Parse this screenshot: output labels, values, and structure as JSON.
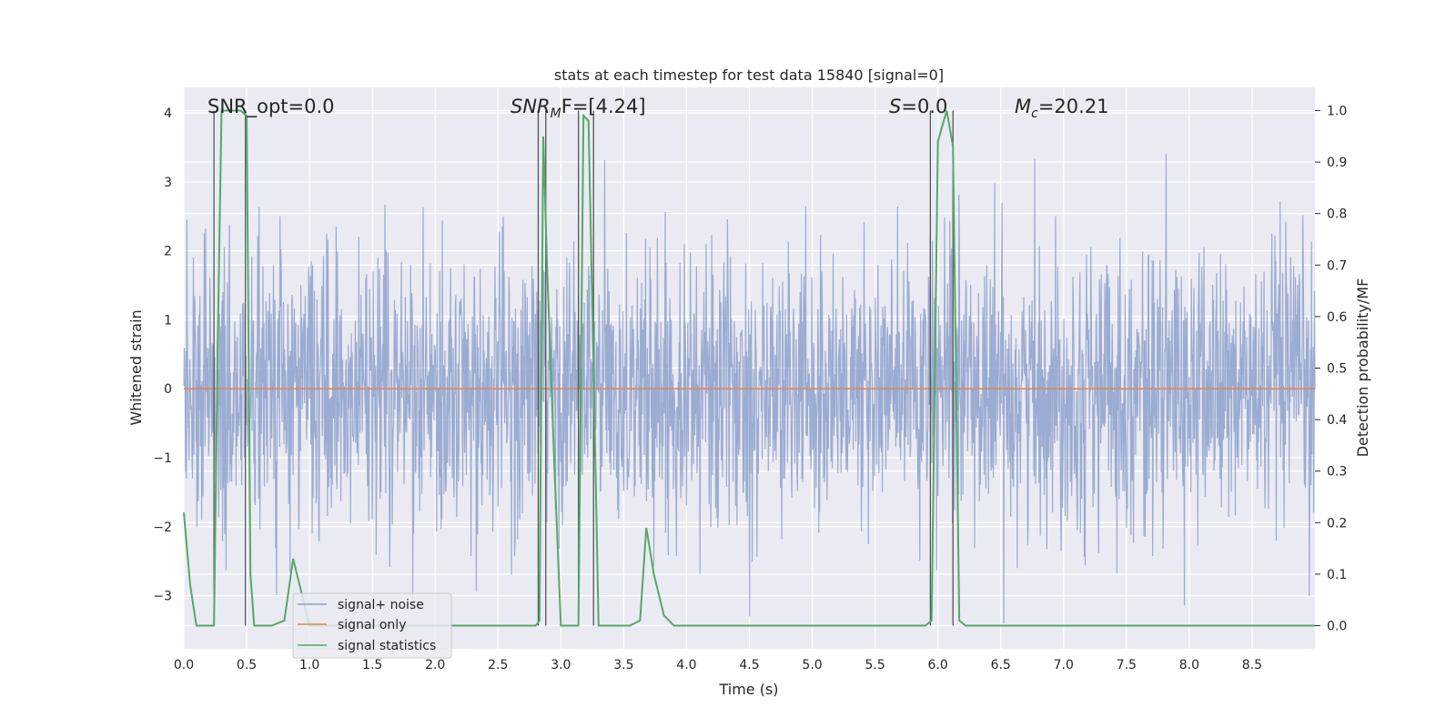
{
  "chart_data": {
    "type": "line",
    "title": "stats at each timestep for test data 15840 [signal=0]",
    "xlabel": "Time (s)",
    "ylabel": "Whitened strain",
    "y2label": "Detection probability/MF",
    "xlim": [
      0.0,
      9.0
    ],
    "ylim": [
      -3.77,
      4.37
    ],
    "y2lim": [
      -0.045,
      1.045
    ],
    "x_ticks": [
      0.0,
      0.5,
      1.0,
      1.5,
      2.0,
      2.5,
      3.0,
      3.5,
      4.0,
      4.5,
      5.0,
      5.5,
      6.0,
      6.5,
      7.0,
      7.5,
      8.0,
      8.5
    ],
    "x_tick_labels": [
      "0.0",
      "0.5",
      "1.0",
      "1.5",
      "2.0",
      "2.5",
      "3.0",
      "3.5",
      "4.0",
      "4.5",
      "5.0",
      "5.5",
      "6.0",
      "6.5",
      "7.0",
      "7.5",
      "8.0",
      "8.5"
    ],
    "y_ticks": [
      -3,
      -2,
      -1,
      0,
      1,
      2,
      3,
      4
    ],
    "y_tick_labels": [
      "−3",
      "−2",
      "−1",
      "0",
      "1",
      "2",
      "3",
      "4"
    ],
    "y2_ticks": [
      0.0,
      0.1,
      0.2,
      0.3,
      0.4,
      0.5,
      0.6,
      0.7,
      0.8,
      0.9,
      1.0
    ],
    "y2_tick_labels": [
      "0.0",
      "0.1",
      "0.2",
      "0.3",
      "0.4",
      "0.5",
      "0.6",
      "0.7",
      "0.8",
      "0.9",
      "1.0"
    ],
    "grid": true,
    "legend_position": "lower-left",
    "annotations": {
      "snr_opt": "SNR_opt=0.0",
      "snr_mf_prefix": "SNR",
      "snr_mf_sub": "M",
      "snr_mf_suffix": "F=[4.24]",
      "s_prefix": "S",
      "s_suffix": "=0.0",
      "mc_prefix": "M",
      "mc_sub": "c",
      "mc_suffix": "=20.21"
    },
    "vertical_markers_x": [
      0.24,
      0.49,
      2.82,
      2.88,
      3.14,
      3.26,
      5.94,
      6.12
    ],
    "series": [
      {
        "name": "signal+ noise",
        "color": "#8da0cb",
        "axis": "left",
        "noise_std": 1.0,
        "peak_range": [
          -3.4,
          4.0
        ]
      },
      {
        "name": "signal only",
        "color": "#dd8452",
        "axis": "left",
        "x": [
          0.0,
          9.0
        ],
        "y": [
          0.0,
          0.0
        ]
      },
      {
        "name": "signal statistics",
        "color": "#55a868",
        "axis": "right",
        "x": [
          0.0,
          0.05,
          0.1,
          0.2,
          0.24,
          0.27,
          0.3,
          0.33,
          0.4,
          0.45,
          0.5,
          0.53,
          0.56,
          0.6,
          0.7,
          0.8,
          0.87,
          0.93,
          1.0,
          1.5,
          2.0,
          2.5,
          2.8,
          2.83,
          2.86,
          2.89,
          2.95,
          3.0,
          3.05,
          3.14,
          3.18,
          3.22,
          3.26,
          3.3,
          3.4,
          3.55,
          3.63,
          3.68,
          3.74,
          3.82,
          3.9,
          4.0,
          5.0,
          5.9,
          5.95,
          6.0,
          6.07,
          6.12,
          6.17,
          6.22,
          6.3,
          7.0,
          8.0,
          9.0
        ],
        "y": [
          0.22,
          0.08,
          0.0,
          0.0,
          0.0,
          0.55,
          1.0,
          1.0,
          1.0,
          1.0,
          0.99,
          0.1,
          0.0,
          0.0,
          0.0,
          0.01,
          0.13,
          0.07,
          0.0,
          0.0,
          0.0,
          0.0,
          0.0,
          0.01,
          0.95,
          0.7,
          0.3,
          0.0,
          0.0,
          0.0,
          0.99,
          0.98,
          0.5,
          0.0,
          0.0,
          0.0,
          0.01,
          0.19,
          0.1,
          0.02,
          0.0,
          0.0,
          0.0,
          0.0,
          0.01,
          0.94,
          1.0,
          0.93,
          0.01,
          0.0,
          0.0,
          0.0,
          0.0,
          0.0
        ]
      }
    ]
  }
}
